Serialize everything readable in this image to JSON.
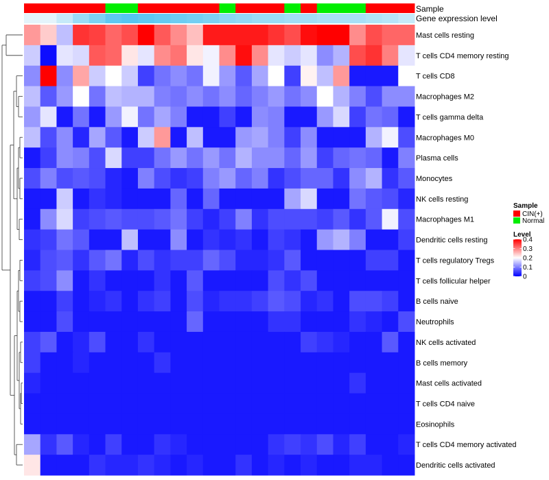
{
  "chart_data": {
    "type": "heatmap",
    "title": "",
    "row_labels": [
      "Mast cells resting",
      "T cells CD4 memory resting",
      "T cells CD8",
      "Macrophages M2",
      "T cells gamma delta",
      "Macrophages M0",
      "Plasma cells",
      "Monocytes",
      "NK cells resting",
      "Macrophages M1",
      "Dendritic cells resting",
      "T cells regulatory  Tregs",
      "T cells follicular helper",
      "B cells naive",
      "Neutrophils",
      "NK cells activated",
      "B cells memory",
      "Mast cells activated",
      "T cells CD4 naive",
      "Eosinophils",
      "T cells CD4 memory activated",
      "Dendritic cells activated"
    ],
    "n_columns": 24,
    "column_annotations": {
      "sample_label": "Sample",
      "expression_label": "Gene expression level",
      "sample_groups": [
        "CIN(+)",
        "CIN(+)",
        "CIN(+)",
        "CIN(+)",
        "CIN(+)",
        "Normal",
        "Normal",
        "CIN(+)",
        "CIN(+)",
        "CIN(+)",
        "CIN(+)",
        "CIN(+)",
        "Normal",
        "CIN(+)",
        "CIN(+)",
        "CIN(+)",
        "Normal",
        "CIN(+)",
        "Normal",
        "Normal",
        "Normal",
        "CIN(+)",
        "CIN(+)",
        "CIN(+)"
      ],
      "expression_levels": [
        0,
        0,
        0.2,
        0.5,
        0.7,
        0.9,
        0.95,
        0.9,
        0.85,
        0.8,
        0.75,
        0.7,
        0.6,
        0.55,
        0.5,
        0.5,
        0.45,
        0.45,
        0.4,
        0.4,
        0.4,
        0.35,
        0.3,
        0.2
      ]
    },
    "values": [
      [
        0.28,
        0.24,
        0.15,
        0.36,
        0.35,
        0.32,
        0.34,
        0.4,
        0.33,
        0.29,
        0.25,
        0.38,
        0.38,
        0.38,
        0.38,
        0.36,
        0.34,
        0.39,
        0.4,
        0.4,
        0.29,
        0.34,
        0.32,
        0.32
      ],
      [
        0.16,
        0.01,
        0.18,
        0.17,
        0.33,
        0.32,
        0.22,
        0.18,
        0.29,
        0.31,
        0.22,
        0.19,
        0.29,
        0.39,
        0.29,
        0.18,
        0.16,
        0.18,
        0.11,
        0.14,
        0.34,
        0.36,
        0.3,
        0.18
      ],
      [
        0.11,
        0.4,
        0.11,
        0.27,
        0.16,
        0.2,
        0.16,
        0.05,
        0.09,
        0.11,
        0.09,
        0.19,
        0.12,
        0.07,
        0.13,
        0.2,
        0.05,
        0.21,
        0.15,
        0.28,
        0.02,
        0.02,
        0.02,
        0.2
      ],
      [
        0.15,
        0.07,
        0.12,
        0.2,
        0.09,
        0.15,
        0.14,
        0.14,
        0.1,
        0.09,
        0.11,
        0.09,
        0.11,
        0.08,
        0.1,
        0.12,
        0.09,
        0.11,
        0.2,
        0.14,
        0.1,
        0.06,
        0.11,
        0.11
      ],
      [
        0.12,
        0.18,
        0.02,
        0.09,
        0.02,
        0.12,
        0.19,
        0.09,
        0.13,
        0.1,
        0.02,
        0.02,
        0.05,
        0.02,
        0.11,
        0.1,
        0.02,
        0.02,
        0.12,
        0.17,
        0.05,
        0.09,
        0.08,
        0.02
      ],
      [
        0.15,
        0.06,
        0.11,
        0.03,
        0.13,
        0.07,
        0.02,
        0.16,
        0.28,
        0.02,
        0.15,
        0.02,
        0.02,
        0.12,
        0.13,
        0.1,
        0.05,
        0.11,
        0.02,
        0.02,
        0.02,
        0.14,
        0.19,
        0.06
      ],
      [
        0.02,
        0.05,
        0.11,
        0.1,
        0.06,
        0.17,
        0.05,
        0.05,
        0.09,
        0.12,
        0.09,
        0.12,
        0.09,
        0.14,
        0.11,
        0.11,
        0.08,
        0.12,
        0.05,
        0.08,
        0.09,
        0.08,
        0.02,
        0.1
      ],
      [
        0.06,
        0.1,
        0.06,
        0.07,
        0.06,
        0.03,
        0.02,
        0.1,
        0.06,
        0.04,
        0.05,
        0.1,
        0.12,
        0.08,
        0.1,
        0.04,
        0.06,
        0.08,
        0.08,
        0.04,
        0.11,
        0.14,
        0.04,
        0.07
      ],
      [
        0.02,
        0.02,
        0.16,
        0.02,
        0.04,
        0.03,
        0.02,
        0.02,
        0.02,
        0.08,
        0.02,
        0.08,
        0.02,
        0.02,
        0.02,
        0.02,
        0.13,
        0.17,
        0.02,
        0.02,
        0.09,
        0.07,
        0.06,
        0.03
      ],
      [
        0.02,
        0.11,
        0.17,
        0.05,
        0.06,
        0.07,
        0.06,
        0.06,
        0.07,
        0.09,
        0.05,
        0.03,
        0.05,
        0.1,
        0.04,
        0.06,
        0.06,
        0.06,
        0.05,
        0.07,
        0.04,
        0.07,
        0.19,
        0.06
      ],
      [
        0.04,
        0.05,
        0.09,
        0.07,
        0.02,
        0.02,
        0.15,
        0.02,
        0.02,
        0.11,
        0.02,
        0.04,
        0.03,
        0.04,
        0.02,
        0.05,
        0.04,
        0.02,
        0.12,
        0.14,
        0.1,
        0.02,
        0.02,
        0.05
      ],
      [
        0.03,
        0.06,
        0.07,
        0.04,
        0.07,
        0.09,
        0.03,
        0.06,
        0.04,
        0.05,
        0.05,
        0.08,
        0.06,
        0.03,
        0.03,
        0.04,
        0.07,
        0.02,
        0.02,
        0.02,
        0.02,
        0.05,
        0.05,
        0.02
      ],
      [
        0.05,
        0.06,
        0.11,
        0.02,
        0.04,
        0.02,
        0.02,
        0.02,
        0.04,
        0.02,
        0.07,
        0.02,
        0.02,
        0.02,
        0.02,
        0.06,
        0.04,
        0.06,
        0.02,
        0.02,
        0.02,
        0.02,
        0.02,
        0.02
      ],
      [
        0.02,
        0.02,
        0.05,
        0.02,
        0.03,
        0.04,
        0.02,
        0.04,
        0.05,
        0.02,
        0.06,
        0.03,
        0.04,
        0.04,
        0.05,
        0.07,
        0.06,
        0.03,
        0.04,
        0.02,
        0.06,
        0.06,
        0.05,
        0.02
      ],
      [
        0.02,
        0.02,
        0.06,
        0.02,
        0.02,
        0.02,
        0.02,
        0.02,
        0.02,
        0.02,
        0.08,
        0.02,
        0.02,
        0.02,
        0.02,
        0.04,
        0.04,
        0.02,
        0.02,
        0.02,
        0.04,
        0.03,
        0.02,
        0.06
      ],
      [
        0.05,
        0.07,
        0.02,
        0.03,
        0.06,
        0.02,
        0.02,
        0.04,
        0.02,
        0.02,
        0.02,
        0.02,
        0.02,
        0.02,
        0.02,
        0.02,
        0.02,
        0.05,
        0.04,
        0.03,
        0.02,
        0.02,
        0.07,
        0.02
      ],
      [
        0.05,
        0.02,
        0.02,
        0.03,
        0.02,
        0.02,
        0.02,
        0.02,
        0.04,
        0.02,
        0.02,
        0.02,
        0.02,
        0.02,
        0.02,
        0.02,
        0.02,
        0.02,
        0.02,
        0.02,
        0.02,
        0.02,
        0.02,
        0.02
      ],
      [
        0.03,
        0.02,
        0.02,
        0.02,
        0.02,
        0.02,
        0.02,
        0.02,
        0.02,
        0.02,
        0.02,
        0.02,
        0.02,
        0.02,
        0.02,
        0.02,
        0.02,
        0.02,
        0.02,
        0.02,
        0.04,
        0.02,
        0.02,
        0.02
      ],
      [
        0.02,
        0.02,
        0.02,
        0.02,
        0.02,
        0.02,
        0.02,
        0.02,
        0.02,
        0.02,
        0.02,
        0.02,
        0.02,
        0.02,
        0.02,
        0.02,
        0.02,
        0.02,
        0.02,
        0.02,
        0.02,
        0.02,
        0.02,
        0.02
      ],
      [
        0.02,
        0.02,
        0.02,
        0.02,
        0.02,
        0.02,
        0.02,
        0.02,
        0.02,
        0.02,
        0.02,
        0.02,
        0.02,
        0.02,
        0.02,
        0.02,
        0.02,
        0.02,
        0.02,
        0.02,
        0.02,
        0.02,
        0.02,
        0.02
      ],
      [
        0.13,
        0.04,
        0.07,
        0.03,
        0.02,
        0.05,
        0.02,
        0.02,
        0.04,
        0.03,
        0.02,
        0.02,
        0.02,
        0.02,
        0.02,
        0.04,
        0.05,
        0.04,
        0.06,
        0.03,
        0.05,
        0.02,
        0.02,
        0.03
      ],
      [
        0.22,
        0.02,
        0.02,
        0.02,
        0.04,
        0.03,
        0.03,
        0.04,
        0.03,
        0.02,
        0.03,
        0.02,
        0.02,
        0.04,
        0.02,
        0.03,
        0.02,
        0.03,
        0.02,
        0.02,
        0.03,
        0.03,
        0.02,
        0.02
      ]
    ],
    "legend": {
      "sample_title": "Sample",
      "sample_items": [
        {
          "label": "CIN(+)",
          "color": "#ff0000"
        },
        {
          "label": "Normal",
          "color": "#00ee00"
        }
      ],
      "level_title": "Level",
      "level_ticks": [
        {
          "label": "0.4",
          "value": 0.4
        },
        {
          "label": "0.3",
          "value": 0.3
        },
        {
          "label": "0.2",
          "value": 0.2
        },
        {
          "label": "0.1",
          "value": 0.1
        },
        {
          "label": "0",
          "value": 0
        }
      ],
      "range": [
        0,
        0.4
      ],
      "position": "right"
    },
    "colors": {
      "low": "#0000ff",
      "mid": "#ffffff",
      "high": "#ff0000",
      "expr_low": "#e4f4fb",
      "expr_high": "#4fc3f0"
    },
    "row_dendrogram": true
  }
}
